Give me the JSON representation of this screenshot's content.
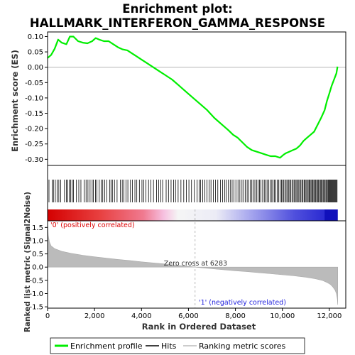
{
  "chart_data": {
    "type": "line",
    "title_line1": "Enrichment plot:",
    "title_line2": "HALLMARK_INTERFERON_GAMMA_RESPONSE",
    "top_panel": {
      "ylabel": "Enrichment score (ES)",
      "ylim": [
        -0.32,
        0.115
      ],
      "yticks": [
        "0.10",
        "0.05",
        "0.00",
        "-0.05",
        "-0.10",
        "-0.15",
        "-0.20",
        "-0.25",
        "-0.30"
      ],
      "ytick_values": [
        0.1,
        0.05,
        0.0,
        -0.05,
        -0.1,
        -0.15,
        -0.2,
        -0.25,
        -0.3
      ],
      "series_color": "#00ee00",
      "es_curve": {
        "x": [
          0,
          150,
          300,
          450,
          600,
          800,
          950,
          1100,
          1300,
          1500,
          1700,
          1900,
          2050,
          2200,
          2400,
          2600,
          2800,
          3000,
          3200,
          3400,
          3600,
          3800,
          4000,
          4200,
          4500,
          4800,
          5000,
          5300,
          5600,
          5900,
          6200,
          6500,
          6800,
          7100,
          7400,
          7700,
          7900,
          8100,
          8300,
          8500,
          8700,
          8900,
          9100,
          9300,
          9500,
          9700,
          9900,
          10050,
          10150,
          10300,
          10450,
          10600,
          10750,
          10900,
          11050,
          11200,
          11350,
          11450,
          11550,
          11650,
          11800,
          11900,
          12000,
          12100,
          12200,
          12300,
          12350
        ],
        "y": [
          0.03,
          0.04,
          0.06,
          0.09,
          0.08,
          0.075,
          0.1,
          0.1,
          0.085,
          0.08,
          0.078,
          0.085,
          0.095,
          0.09,
          0.085,
          0.085,
          0.075,
          0.065,
          0.058,
          0.055,
          0.045,
          0.035,
          0.025,
          0.015,
          0.0,
          -0.015,
          -0.025,
          -0.04,
          -0.06,
          -0.08,
          -0.1,
          -0.12,
          -0.14,
          -0.165,
          -0.185,
          -0.205,
          -0.22,
          -0.23,
          -0.245,
          -0.26,
          -0.27,
          -0.275,
          -0.28,
          -0.285,
          -0.29,
          -0.29,
          -0.295,
          -0.285,
          -0.28,
          -0.275,
          -0.27,
          -0.265,
          -0.255,
          -0.24,
          -0.23,
          -0.22,
          -0.21,
          -0.195,
          -0.18,
          -0.165,
          -0.14,
          -0.11,
          -0.085,
          -0.06,
          -0.04,
          -0.02,
          0.002
        ]
      }
    },
    "hits_panel": {
      "hit_positions": [
        60,
        200,
        250,
        330,
        410,
        480,
        560,
        720,
        800,
        860,
        920,
        980,
        1050,
        1100,
        1230,
        1330,
        1420,
        1560,
        1640,
        1720,
        1810,
        1900,
        1950,
        2040,
        2100,
        2200,
        2280,
        2350,
        2430,
        2520,
        2640,
        2700,
        2760,
        2850,
        2960,
        3100,
        3180,
        3250,
        3340,
        3420,
        3530,
        3610,
        3720,
        3800,
        3910,
        4020,
        4100,
        4190,
        4300,
        4400,
        4510,
        4640,
        4730,
        4820,
        4900,
        5050,
        5150,
        5260,
        5370,
        5450,
        5560,
        5680,
        5800,
        5910,
        6020,
        6130,
        6250,
        6370,
        6460,
        6520,
        6610,
        6700,
        6790,
        6880,
        6960,
        7060,
        7150,
        7250,
        7360,
        7450,
        7540,
        7610,
        7700,
        7780,
        7860,
        7940,
        8020,
        8110,
        8190,
        8280,
        8350,
        8420,
        8500,
        8560,
        8640,
        8700,
        8770,
        8830,
        8900,
        8960,
        9030,
        9090,
        9160,
        9230,
        9290,
        9350,
        9420,
        9480,
        9550,
        9600,
        9660,
        9720,
        9780,
        9840,
        9900,
        9960,
        10010,
        10060,
        10110,
        10160,
        10210,
        10260,
        10310,
        10360,
        10410,
        10460,
        10510,
        10560,
        10610,
        10660,
        10700,
        10750,
        10790,
        10840,
        10880,
        10930,
        10970,
        11010,
        11060,
        11100,
        11140,
        11180,
        11220,
        11260,
        11300,
        11340,
        11380,
        11420,
        11460,
        11500,
        11540,
        11580,
        11620,
        11660,
        11700,
        11740,
        11780,
        11820,
        11860,
        11900,
        11940,
        11970,
        12000,
        12030,
        12060,
        12090,
        12120,
        12150,
        12180,
        12210,
        12240,
        12270,
        12300,
        12330
      ]
    },
    "bottom_panel": {
      "ylabel": "Ranked list metric (Signal2Noise)",
      "xlabel": "Rank in Ordered Dataset",
      "ylim": [
        -1.55,
        1.75
      ],
      "yticks": [
        "1.5",
        "1.0",
        "0.5",
        "0.0",
        "-0.5",
        "-1.0",
        "-1.5"
      ],
      "ytick_values": [
        1.5,
        1.0,
        0.5,
        0.0,
        -0.5,
        -1.0,
        -1.5
      ],
      "xticks": [
        "0",
        "2,000",
        "4,000",
        "6,000",
        "8,000",
        "10,000",
        "12,000"
      ],
      "xtick_values": [
        0,
        2000,
        4000,
        6000,
        8000,
        10000,
        12000
      ],
      "xlim": [
        0,
        12700
      ],
      "n_genes": 12357,
      "zero_cross": 6283,
      "zero_cross_label": "Zero cross at 6283",
      "pos_label": "'0' (positively correlated)",
      "neg_label": "'1' (negatively correlated)",
      "pos_label_color": "#dd0000",
      "neg_label_color": "#2222dd",
      "metric_curve": {
        "x": [
          0,
          30,
          80,
          150,
          300,
          600,
          1000,
          1500,
          2000,
          2500,
          3000,
          3500,
          4000,
          4500,
          5000,
          5500,
          6000,
          6283,
          6600,
          7000,
          7500,
          8000,
          8500,
          9000,
          9500,
          10000,
          10500,
          11000,
          11400,
          11700,
          11900,
          12050,
          12150,
          12250,
          12300,
          12340,
          12357
        ],
        "y": [
          1.72,
          1.2,
          0.95,
          0.8,
          0.7,
          0.6,
          0.52,
          0.45,
          0.39,
          0.34,
          0.29,
          0.25,
          0.2,
          0.16,
          0.12,
          0.07,
          0.03,
          0.0,
          -0.03,
          -0.06,
          -0.1,
          -0.14,
          -0.17,
          -0.21,
          -0.25,
          -0.29,
          -0.33,
          -0.38,
          -0.44,
          -0.5,
          -0.58,
          -0.66,
          -0.75,
          -0.88,
          -1.0,
          -1.2,
          -1.42
        ]
      }
    },
    "legend": {
      "items": [
        {
          "label": "Enrichment profile",
          "color": "#00ee00"
        },
        {
          "label": "Hits",
          "color": "#000000"
        },
        {
          "label": "Ranking metric scores",
          "color": "#bbbbbb"
        }
      ]
    }
  }
}
